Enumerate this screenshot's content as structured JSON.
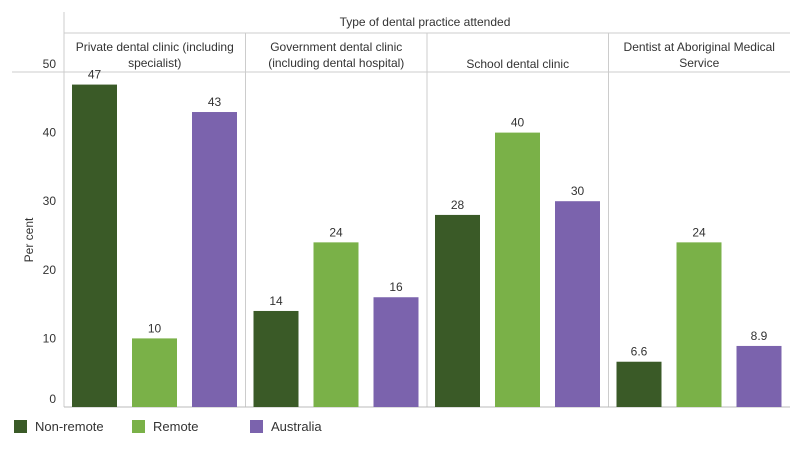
{
  "chart_data": {
    "type": "bar",
    "title": "",
    "column_header": "Type of dental practice attended",
    "categories": [
      "Private dental clinic (including specialist)",
      "Government dental clinic (including dental hospital)",
      "School dental clinic",
      "Dentist at Aboriginal Medical Service"
    ],
    "category_label_lines": [
      [
        "Private dental clinic (including",
        "specialist)"
      ],
      [
        "Government dental clinic",
        "(including dental hospital)"
      ],
      [
        "School dental clinic"
      ],
      [
        "Dentist at Aboriginal Medical",
        "Service"
      ]
    ],
    "series": [
      {
        "name": "Non-remote",
        "color": "#3a5a27",
        "values": [
          47,
          14,
          28,
          6.6
        ]
      },
      {
        "name": "Remote",
        "color": "#7ab148",
        "values": [
          10,
          24,
          40,
          24
        ]
      },
      {
        "name": "Australia",
        "color": "#7b63ad",
        "values": [
          43,
          16,
          30,
          8.9
        ]
      }
    ],
    "data_labels": [
      [
        "47",
        "14",
        "28",
        "6.6"
      ],
      [
        "10",
        "24",
        "40",
        "24"
      ],
      [
        "43",
        "16",
        "30",
        "8.9"
      ]
    ],
    "ylabel": "Per cent",
    "xlabel": "",
    "ylim": [
      0,
      50
    ],
    "yticks": [
      0,
      10,
      20,
      30,
      40,
      50
    ],
    "grid": false,
    "legend_position": "bottom-left"
  }
}
